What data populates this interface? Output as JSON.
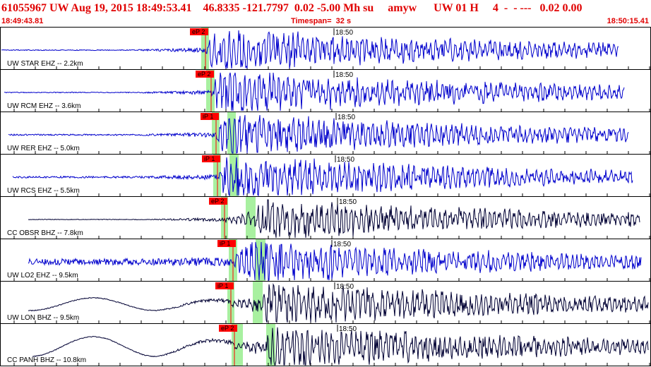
{
  "header": {
    "title": "61055967 UW Aug 19, 2015 18:49:53.41    46.8335 -121.7797  0.02 -5.00 Mh su     amyw      UW 01 H     4  -  - ---   0.02 0.00",
    "start_time": "18:49:43.81",
    "timespan": "Timespan=  32 s",
    "end_time": "18:50:15.41"
  },
  "time_tick_label": "18:50",
  "colors": {
    "header_text": "#e00000",
    "trace_blue": "#0000cc",
    "trace_black": "#000033",
    "pick_flag": "#ff0000",
    "window_green": "#a8f0a0"
  },
  "traces": [
    {
      "label": "UW STAR EHZ -- 2.2km",
      "pick": "eP 2",
      "color": "blue"
    },
    {
      "label": "UW RCM EHZ -- 3.6km",
      "pick": "eP 2",
      "color": "blue"
    },
    {
      "label": "UW RER EHZ -- 5.0km",
      "pick": "iP 1",
      "color": "blue"
    },
    {
      "label": "UW RCS EHZ -- 5.5km",
      "pick": "iP 1",
      "color": "blue"
    },
    {
      "label": "CC OBSR BHZ -- 7.8km",
      "pick": "eP 2",
      "color": "black"
    },
    {
      "label": "UW LO2 EHZ -- 9.5km",
      "pick": "iP 1",
      "color": "blue"
    },
    {
      "label": "UW LON BHZ -- 9.5km",
      "pick": "iP 1",
      "color": "black"
    },
    {
      "label": "CC PANH BHZ -- 10.8km",
      "pick": "eP 2",
      "color": "black"
    }
  ]
}
